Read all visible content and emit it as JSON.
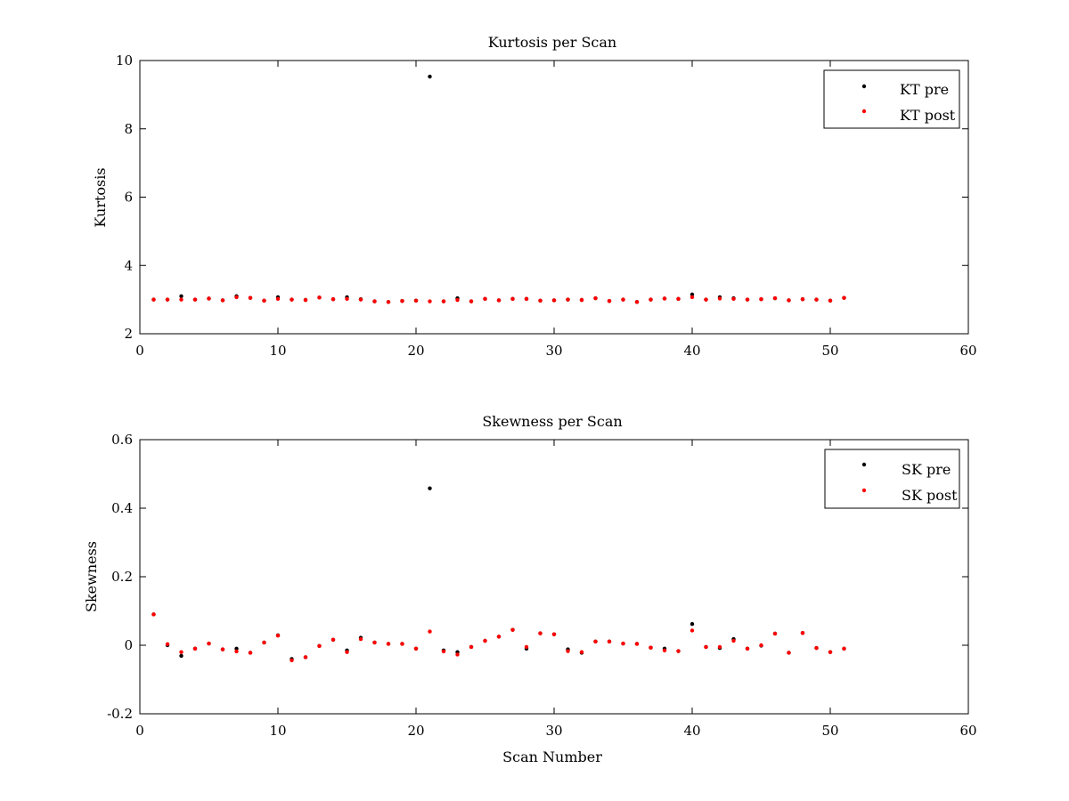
{
  "chart_data": [
    {
      "type": "scatter",
      "title": "Kurtosis per Scan",
      "xlabel": "",
      "ylabel": "Kurtosis",
      "xlim": [
        0,
        60
      ],
      "ylim": [
        2,
        10
      ],
      "xticks": [
        "0",
        "10",
        "20",
        "30",
        "40",
        "50",
        "60"
      ],
      "yticks": [
        "2",
        "4",
        "6",
        "8",
        "10"
      ],
      "grid": false,
      "legend_position": "top-right",
      "x": [
        1,
        2,
        3,
        4,
        5,
        6,
        7,
        8,
        9,
        10,
        11,
        12,
        13,
        14,
        15,
        16,
        17,
        18,
        19,
        20,
        21,
        22,
        23,
        24,
        25,
        26,
        27,
        28,
        29,
        30,
        31,
        32,
        33,
        34,
        35,
        36,
        37,
        38,
        39,
        40,
        41,
        42,
        43,
        44,
        45,
        46,
        47,
        48,
        49,
        50,
        51
      ],
      "series": [
        {
          "name": "KT pre",
          "color": "#000000",
          "values": [
            3.0,
            3.0,
            3.1,
            3.0,
            3.03,
            2.98,
            3.1,
            3.05,
            2.97,
            3.07,
            3.0,
            2.99,
            3.06,
            3.01,
            3.07,
            3.01,
            2.95,
            2.93,
            2.96,
            2.97,
            9.53,
            2.95,
            3.04,
            2.95,
            3.02,
            2.98,
            3.02,
            3.02,
            2.97,
            2.98,
            3.0,
            2.99,
            3.04,
            2.96,
            3.0,
            2.93,
            3.0,
            3.03,
            3.02,
            3.15,
            3.0,
            3.07,
            3.04,
            3.0,
            3.01,
            3.04,
            2.98,
            3.01,
            3.0,
            2.97,
            3.05
          ]
        },
        {
          "name": "KT post",
          "color": "#ff0000",
          "values": [
            3.0,
            3.0,
            3.0,
            3.0,
            3.03,
            2.98,
            3.07,
            3.05,
            2.97,
            3.02,
            3.0,
            2.99,
            3.06,
            3.01,
            3.02,
            3.0,
            2.95,
            2.93,
            2.96,
            2.97,
            2.95,
            2.95,
            2.99,
            2.95,
            3.02,
            2.98,
            3.02,
            3.02,
            2.97,
            2.98,
            3.0,
            2.99,
            3.04,
            2.96,
            3.0,
            2.93,
            3.0,
            3.03,
            3.02,
            3.07,
            3.0,
            3.03,
            3.02,
            3.0,
            3.01,
            3.04,
            2.98,
            3.01,
            3.0,
            2.97,
            3.05
          ]
        }
      ]
    },
    {
      "type": "scatter",
      "title": "Skewness per Scan",
      "xlabel": "Scan Number",
      "ylabel": "Skewness",
      "xlim": [
        0,
        60
      ],
      "ylim": [
        -0.2,
        0.6
      ],
      "xticks": [
        "0",
        "10",
        "20",
        "30",
        "40",
        "50",
        "60"
      ],
      "yticks": [
        "-0.2",
        "0",
        "0.2",
        "0.4",
        "0.6"
      ],
      "grid": false,
      "legend_position": "top-right",
      "x": [
        1,
        2,
        3,
        4,
        5,
        6,
        7,
        8,
        9,
        10,
        11,
        12,
        13,
        14,
        15,
        16,
        17,
        18,
        19,
        20,
        21,
        22,
        23,
        24,
        25,
        26,
        27,
        28,
        29,
        30,
        31,
        32,
        33,
        34,
        35,
        36,
        37,
        38,
        39,
        40,
        41,
        42,
        43,
        44,
        45,
        46,
        47,
        48,
        49,
        50,
        51
      ],
      "series": [
        {
          "name": "SK pre",
          "color": "#000000",
          "values": [
            0.09,
            0.0,
            -0.031,
            -0.01,
            0.005,
            -0.012,
            -0.01,
            -0.022,
            0.008,
            0.029,
            -0.04,
            -0.035,
            -0.002,
            0.016,
            -0.015,
            0.022,
            0.008,
            0.004,
            0.004,
            -0.01,
            0.458,
            -0.015,
            -0.02,
            -0.005,
            0.013,
            0.025,
            0.045,
            -0.01,
            0.035,
            0.032,
            -0.012,
            -0.022,
            0.011,
            0.011,
            0.005,
            0.004,
            -0.007,
            -0.01,
            -0.017,
            0.062,
            -0.005,
            -0.008,
            0.018,
            -0.01,
            -0.001,
            0.034,
            -0.022,
            0.036,
            -0.008,
            -0.02,
            -0.01
          ]
        },
        {
          "name": "SK post",
          "color": "#ff0000",
          "values": [
            0.09,
            0.003,
            -0.02,
            -0.01,
            0.005,
            -0.012,
            -0.018,
            -0.022,
            0.008,
            0.028,
            -0.044,
            -0.035,
            -0.002,
            0.016,
            -0.02,
            0.018,
            0.008,
            0.004,
            0.004,
            -0.01,
            0.04,
            -0.018,
            -0.027,
            -0.005,
            0.013,
            0.025,
            0.045,
            -0.005,
            0.035,
            0.032,
            -0.017,
            -0.02,
            0.011,
            0.011,
            0.005,
            0.004,
            -0.007,
            -0.015,
            -0.017,
            0.043,
            -0.005,
            -0.005,
            0.013,
            -0.01,
            0.0,
            0.034,
            -0.022,
            0.036,
            -0.008,
            -0.02,
            -0.01
          ]
        }
      ]
    }
  ]
}
